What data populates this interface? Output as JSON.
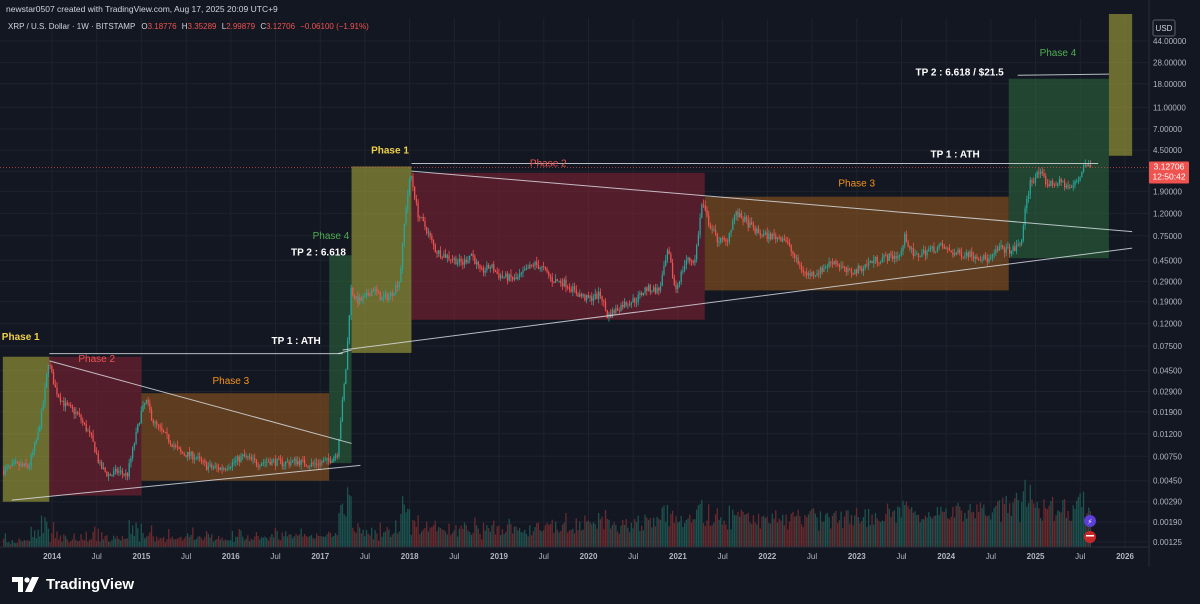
{
  "header": {
    "credit": "newstar0507 created with TradingView.com, Aug 17, 2025 20:09 UTC+9",
    "symbol": "XRP / U.S. Dollar · 1W · BITSTAMP",
    "o_label": "O",
    "o_value": "3.18776",
    "h_label": "H",
    "h_value": "3.35289",
    "l_label": "L",
    "l_value": "2.99879",
    "c_label": "C",
    "c_value": "3.12706",
    "change": "−0.06100 (−1.91%)"
  },
  "price_axis": {
    "currency": "USD",
    "current_price": "3.12706",
    "countdown": "12:50:42"
  },
  "brand": {
    "name": "TradingView",
    "icon": "tradingview-logo-icon"
  },
  "colors": {
    "background": "#131722",
    "up": "#26a69a",
    "down": "#ef5350",
    "phase1": "#b5b23d",
    "phase2": "#8a2233",
    "phase3": "#9a5b1e",
    "phase4": "#2e6b3e",
    "phase1_text": "#f0d04a",
    "phase2_text": "#ef5350",
    "phase3_text": "#f7931a",
    "phase4_text": "#4caf50"
  },
  "chart_data": {
    "type": "candlestick",
    "scale": "log",
    "x_ticks": [
      "2014",
      "Jul",
      "2015",
      "Jul",
      "2016",
      "Jul",
      "2017",
      "Jul",
      "2018",
      "Jul",
      "2019",
      "Jul",
      "2020",
      "Jul",
      "2021",
      "Jul",
      "2022",
      "Jul",
      "2023",
      "Jul",
      "2024",
      "Jul",
      "2025",
      "Jul",
      "2026"
    ],
    "x_tick_dates": [
      2014.0,
      2014.5,
      2015.0,
      2015.5,
      2016.0,
      2016.5,
      2017.0,
      2017.5,
      2018.0,
      2018.5,
      2019.0,
      2019.5,
      2020.0,
      2020.5,
      2021.0,
      2021.5,
      2022.0,
      2022.5,
      2023.0,
      2023.5,
      2024.0,
      2024.5,
      2025.0,
      2025.5,
      2026.0
    ],
    "y_ticks": [
      "44.00000",
      "28.00000",
      "18.00000",
      "11.00000",
      "7.00000",
      "4.50000",
      "2.90000",
      "1.90000",
      "1.20000",
      "0.75000",
      "0.45000",
      "0.29000",
      "0.19000",
      "0.12000",
      "0.07500",
      "0.04500",
      "0.02900",
      "0.01900",
      "0.01200",
      "0.00750",
      "0.00450",
      "0.00290",
      "0.00190",
      "0.00125"
    ],
    "y_tick_values": [
      44,
      28,
      18,
      11,
      7,
      4.5,
      2.9,
      1.9,
      1.2,
      0.75,
      0.45,
      0.29,
      0.19,
      0.12,
      0.075,
      0.045,
      0.029,
      0.019,
      0.012,
      0.0075,
      0.0045,
      0.0029,
      0.0019,
      0.00125
    ],
    "price_path": [
      [
        2013.45,
        0.0055
      ],
      [
        2013.6,
        0.0062
      ],
      [
        2013.75,
        0.006
      ],
      [
        2013.85,
        0.0115
      ],
      [
        2013.92,
        0.025
      ],
      [
        2013.97,
        0.055
      ],
      [
        2014.05,
        0.03
      ],
      [
        2014.15,
        0.022
      ],
      [
        2014.3,
        0.018
      ],
      [
        2014.45,
        0.011
      ],
      [
        2014.55,
        0.006
      ],
      [
        2014.65,
        0.005
      ],
      [
        2014.75,
        0.0055
      ],
      [
        2014.85,
        0.005
      ],
      [
        2015.0,
        0.018
      ],
      [
        2015.06,
        0.024
      ],
      [
        2015.15,
        0.015
      ],
      [
        2015.3,
        0.011
      ],
      [
        2015.45,
        0.008
      ],
      [
        2015.6,
        0.0075
      ],
      [
        2015.75,
        0.006
      ],
      [
        2015.9,
        0.0058
      ],
      [
        2016.0,
        0.0063
      ],
      [
        2016.15,
        0.0075
      ],
      [
        2016.3,
        0.0065
      ],
      [
        2016.45,
        0.0068
      ],
      [
        2016.6,
        0.0065
      ],
      [
        2016.75,
        0.0068
      ],
      [
        2016.9,
        0.0063
      ],
      [
        2017.0,
        0.0065
      ],
      [
        2017.1,
        0.0068
      ],
      [
        2017.2,
        0.008
      ],
      [
        2017.25,
        0.02
      ],
      [
        2017.3,
        0.05
      ],
      [
        2017.35,
        0.25
      ],
      [
        2017.42,
        0.19
      ],
      [
        2017.5,
        0.2
      ],
      [
        2017.6,
        0.25
      ],
      [
        2017.7,
        0.2
      ],
      [
        2017.8,
        0.22
      ],
      [
        2017.9,
        0.3
      ],
      [
        2017.96,
        1.2
      ],
      [
        2018.02,
        2.8
      ],
      [
        2018.1,
        1.2
      ],
      [
        2018.2,
        0.85
      ],
      [
        2018.3,
        0.55
      ],
      [
        2018.45,
        0.48
      ],
      [
        2018.6,
        0.42
      ],
      [
        2018.7,
        0.52
      ],
      [
        2018.8,
        0.35
      ],
      [
        2018.92,
        0.4
      ],
      [
        2019.0,
        0.33
      ],
      [
        2019.2,
        0.3
      ],
      [
        2019.4,
        0.42
      ],
      [
        2019.5,
        0.38
      ],
      [
        2019.6,
        0.3
      ],
      [
        2019.75,
        0.28
      ],
      [
        2019.9,
        0.22
      ],
      [
        2020.0,
        0.2
      ],
      [
        2020.15,
        0.22
      ],
      [
        2020.22,
        0.14
      ],
      [
        2020.4,
        0.18
      ],
      [
        2020.55,
        0.2
      ],
      [
        2020.65,
        0.25
      ],
      [
        2020.8,
        0.24
      ],
      [
        2020.9,
        0.55
      ],
      [
        2020.98,
        0.24
      ],
      [
        2021.1,
        0.45
      ],
      [
        2021.2,
        0.45
      ],
      [
        2021.28,
        1.5
      ],
      [
        2021.35,
        1.0
      ],
      [
        2021.45,
        0.7
      ],
      [
        2021.55,
        0.65
      ],
      [
        2021.65,
        1.2
      ],
      [
        2021.75,
        1.05
      ],
      [
        2021.9,
        0.8
      ],
      [
        2022.0,
        0.75
      ],
      [
        2022.2,
        0.72
      ],
      [
        2022.35,
        0.42
      ],
      [
        2022.45,
        0.33
      ],
      [
        2022.6,
        0.36
      ],
      [
        2022.75,
        0.45
      ],
      [
        2022.9,
        0.35
      ],
      [
        2023.0,
        0.36
      ],
      [
        2023.2,
        0.45
      ],
      [
        2023.35,
        0.48
      ],
      [
        2023.5,
        0.5
      ],
      [
        2023.55,
        0.75
      ],
      [
        2023.65,
        0.48
      ],
      [
        2023.8,
        0.55
      ],
      [
        2023.95,
        0.6
      ],
      [
        2024.1,
        0.52
      ],
      [
        2024.25,
        0.52
      ],
      [
        2024.4,
        0.48
      ],
      [
        2024.5,
        0.45
      ],
      [
        2024.6,
        0.58
      ],
      [
        2024.75,
        0.55
      ],
      [
        2024.85,
        0.65
      ],
      [
        2024.88,
        1.1
      ],
      [
        2024.95,
        2.3
      ],
      [
        2025.05,
        2.8
      ],
      [
        2025.15,
        2.2
      ],
      [
        2025.3,
        2.3
      ],
      [
        2025.4,
        2.0
      ],
      [
        2025.5,
        2.5
      ],
      [
        2025.55,
        3.4
      ],
      [
        2025.62,
        3.13
      ]
    ],
    "phase_boxes": [
      {
        "label": "Phase 1",
        "x0": 2013.45,
        "x1": 2013.97,
        "y0": 0.0029,
        "y1": 0.06,
        "color": "phase1"
      },
      {
        "label": "Phase 2",
        "x0": 2013.97,
        "x1": 2015.0,
        "y0": 0.0033,
        "y1": 0.06,
        "color": "phase2"
      },
      {
        "label": "Phase 3",
        "x0": 2015.0,
        "x1": 2017.1,
        "y0": 0.0045,
        "y1": 0.028,
        "color": "phase3"
      },
      {
        "label": "Phase 4",
        "x0": 2017.1,
        "x1": 2017.35,
        "y0": 0.0065,
        "y1": 0.5,
        "color": "phase4"
      },
      {
        "label": "Phase 1",
        "x0": 2017.35,
        "x1": 2018.02,
        "y0": 0.065,
        "y1": 3.2,
        "color": "phase1"
      },
      {
        "label": "Phase 2",
        "x0": 2018.02,
        "x1": 2021.3,
        "y0": 0.13,
        "y1": 2.8,
        "color": "phase2"
      },
      {
        "label": "Phase 3",
        "x0": 2021.3,
        "x1": 2024.7,
        "y0": 0.24,
        "y1": 1.7,
        "color": "phase3"
      },
      {
        "label": "Phase 4",
        "x0": 2024.7,
        "x1": 2025.82,
        "y0": 0.47,
        "y1": 20,
        "color": "phase4"
      },
      {
        "label": "",
        "x0": 2025.82,
        "x1": 2026.08,
        "y0": 4.0,
        "y1": 80,
        "color": "phase1"
      }
    ],
    "phase_labels": [
      {
        "text": "Phase 1",
        "x": 2013.65,
        "y": 0.085,
        "color": "phase1_text",
        "bold": true
      },
      {
        "text": "Phase 2",
        "x": 2014.5,
        "y": 0.054,
        "color": "phase2_text",
        "bold": false
      },
      {
        "text": "Phase 3",
        "x": 2016.0,
        "y": 0.034,
        "color": "phase3_text",
        "bold": false
      },
      {
        "text": "Phase 4",
        "x": 2017.12,
        "y": 0.7,
        "color": "phase4_text",
        "bold": false
      },
      {
        "text": "Phase 1",
        "x": 2017.78,
        "y": 4.2,
        "color": "phase1_text",
        "bold": true
      },
      {
        "text": "Phase 2",
        "x": 2019.55,
        "y": 3.2,
        "color": "phase2_text",
        "bold": false
      },
      {
        "text": "Phase 3",
        "x": 2023.0,
        "y": 2.1,
        "color": "phase3_text",
        "bold": false
      },
      {
        "text": "Phase 4",
        "x": 2025.25,
        "y": 32,
        "color": "phase4_text",
        "bold": false
      }
    ],
    "annotations": [
      {
        "text": "TP 1 : ATH",
        "x": 2016.73,
        "y": 0.078
      },
      {
        "text": "TP 2 : 6.618",
        "x": 2016.98,
        "y": 0.5
      },
      {
        "text": "TP 1 : ATH",
        "x": 2024.1,
        "y": 3.85
      },
      {
        "text": "TP 2 : 6.618 / $21.5",
        "x": 2024.15,
        "y": 21.5
      }
    ],
    "lines": [
      {
        "x0": 2013.97,
        "y0": 0.055,
        "x1": 2017.35,
        "y1": 0.0098
      },
      {
        "x0": 2013.55,
        "y0": 0.003,
        "x1": 2017.45,
        "y1": 0.0062
      },
      {
        "x0": 2013.97,
        "y0": 0.064,
        "x1": 2017.25,
        "y1": 0.064
      },
      {
        "x0": 2017.2,
        "y0": 0.064,
        "x1": 2017.35,
        "y1": 0.069
      },
      {
        "x0": 2017.25,
        "y0": 0.069,
        "x1": 2026.08,
        "y1": 0.58
      },
      {
        "x0": 2018.02,
        "y0": 2.9,
        "x1": 2026.08,
        "y1": 0.82
      },
      {
        "x0": 2018.02,
        "y0": 3.4,
        "x1": 2025.7,
        "y1": 3.4
      },
      {
        "x0": 2024.8,
        "y0": 21.5,
        "x1": 2025.82,
        "y1": 22
      }
    ]
  }
}
